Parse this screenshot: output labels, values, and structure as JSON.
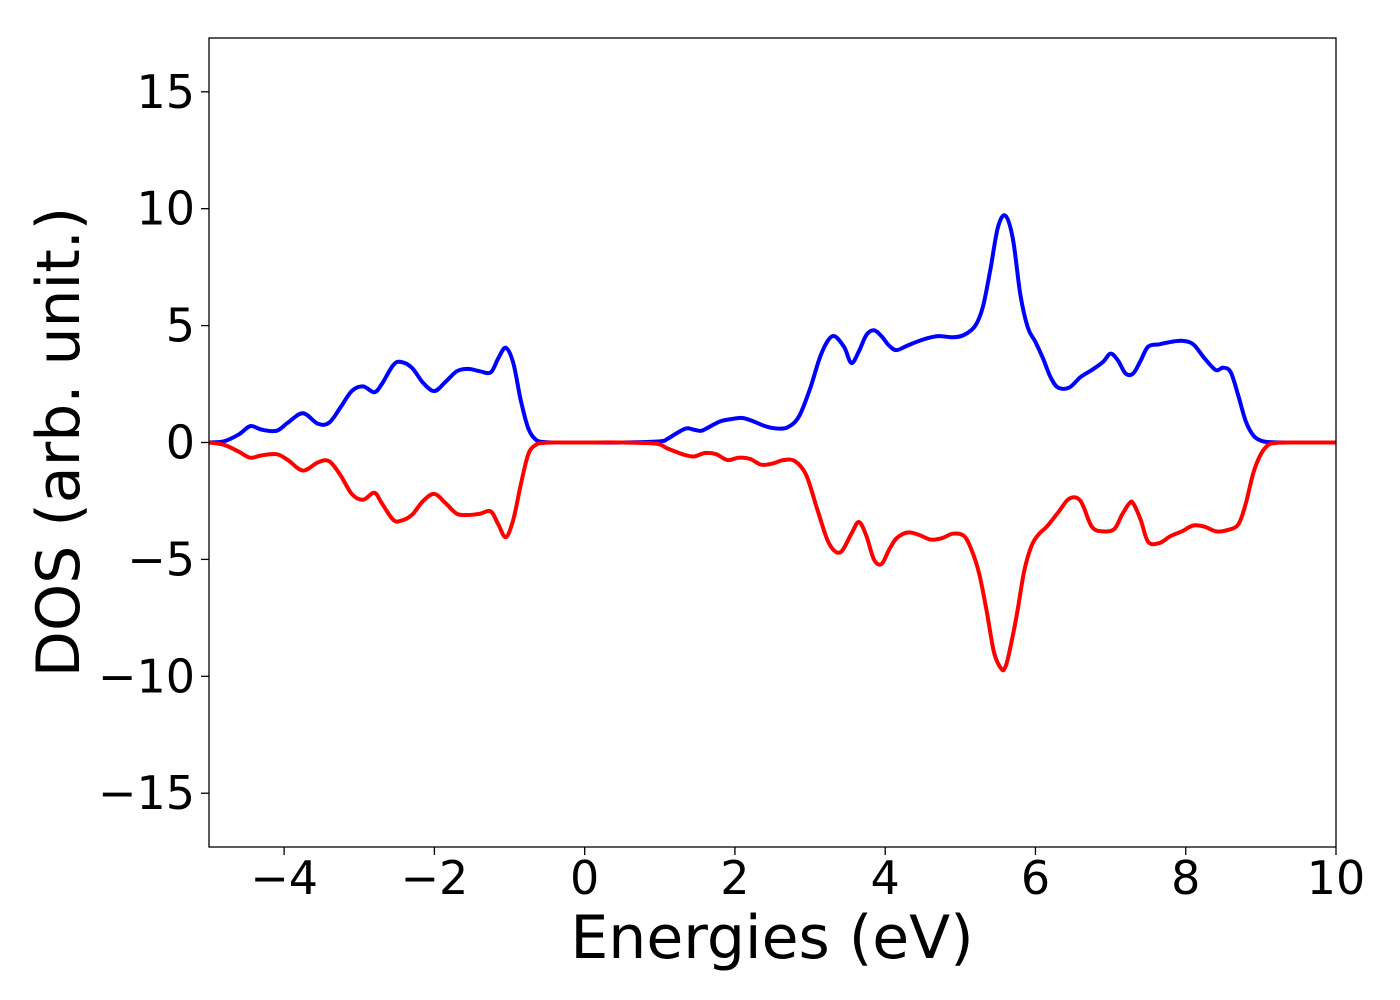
{
  "chart_data": {
    "type": "line",
    "title": "",
    "xlabel": "Energies (eV)",
    "ylabel": "DOS (arb. unit.)",
    "xlim": [
      -5,
      10
    ],
    "ylim": [
      -17.3,
      17.3
    ],
    "xticks": [
      -4,
      -2,
      0,
      2,
      4,
      6,
      8,
      10
    ],
    "xtick_labels": [
      "−4",
      "−2",
      "0",
      "2",
      "4",
      "6",
      "8",
      "10"
    ],
    "yticks": [
      15,
      10,
      5,
      0,
      -5,
      -10,
      -15
    ],
    "ytick_labels": [
      "15",
      "10",
      "5",
      "0",
      "−5",
      "−10",
      "−15"
    ],
    "grid": false,
    "legend": false,
    "series": [
      {
        "color": "#0000ff",
        "x": [
          -5,
          -4.8,
          -4.6,
          -4.45,
          -4.3,
          -4.1,
          -3.95,
          -3.75,
          -3.55,
          -3.4,
          -3.25,
          -3.1,
          -2.95,
          -2.8,
          -2.7,
          -2.55,
          -2.45,
          -2.3,
          -2.15,
          -2.0,
          -1.85,
          -1.7,
          -1.55,
          -1.4,
          -1.25,
          -1.15,
          -1.05,
          -0.95,
          -0.85,
          -0.75,
          -0.65,
          -0.55,
          -0.4,
          0,
          0.5,
          1.0,
          1.1,
          1.2,
          1.35,
          1.45,
          1.55,
          1.65,
          1.8,
          1.95,
          2.1,
          2.25,
          2.4,
          2.55,
          2.7,
          2.85,
          3.0,
          3.15,
          3.3,
          3.45,
          3.55,
          3.65,
          3.75,
          3.85,
          3.95,
          4.05,
          4.15,
          4.3,
          4.5,
          4.7,
          4.9,
          5.05,
          5.2,
          5.3,
          5.4,
          5.5,
          5.6,
          5.7,
          5.8,
          5.9,
          6.0,
          6.1,
          6.2,
          6.3,
          6.45,
          6.6,
          6.75,
          6.9,
          7.0,
          7.1,
          7.2,
          7.3,
          7.4,
          7.5,
          7.65,
          7.8,
          7.95,
          8.1,
          8.25,
          8.4,
          8.5,
          8.6,
          8.7,
          8.8,
          8.9,
          9.0,
          9.1,
          9.3,
          9.6,
          10
        ],
        "y": [
          0,
          0.05,
          0.35,
          0.7,
          0.55,
          0.5,
          0.85,
          1.25,
          0.8,
          0.85,
          1.5,
          2.2,
          2.4,
          2.15,
          2.5,
          3.3,
          3.45,
          3.2,
          2.55,
          2.2,
          2.6,
          3.05,
          3.15,
          3.05,
          3.0,
          3.6,
          4.05,
          3.4,
          1.8,
          0.6,
          0.12,
          0.02,
          0,
          0,
          0,
          0.05,
          0.15,
          0.35,
          0.6,
          0.55,
          0.5,
          0.65,
          0.9,
          1.0,
          1.05,
          0.9,
          0.7,
          0.6,
          0.65,
          1.1,
          2.3,
          3.8,
          4.55,
          4.1,
          3.4,
          3.9,
          4.6,
          4.8,
          4.55,
          4.15,
          3.95,
          4.15,
          4.4,
          4.55,
          4.5,
          4.6,
          5.0,
          5.8,
          7.4,
          9.2,
          9.7,
          8.7,
          6.3,
          4.9,
          4.3,
          3.6,
          2.8,
          2.35,
          2.35,
          2.8,
          3.1,
          3.45,
          3.8,
          3.5,
          2.95,
          2.95,
          3.5,
          4.1,
          4.2,
          4.3,
          4.35,
          4.2,
          3.6,
          3.1,
          3.2,
          3.0,
          2.0,
          0.9,
          0.3,
          0.08,
          0.02,
          0,
          0,
          0
        ]
      },
      {
        "color": "#ff0000",
        "x": [
          -5,
          -4.8,
          -4.6,
          -4.45,
          -4.3,
          -4.1,
          -3.95,
          -3.75,
          -3.55,
          -3.4,
          -3.25,
          -3.1,
          -2.95,
          -2.8,
          -2.7,
          -2.55,
          -2.45,
          -2.3,
          -2.15,
          -2.0,
          -1.85,
          -1.7,
          -1.55,
          -1.4,
          -1.25,
          -1.15,
          -1.05,
          -0.95,
          -0.85,
          -0.75,
          -0.65,
          -0.55,
          -0.4,
          0,
          0.5,
          0.95,
          1.1,
          1.3,
          1.45,
          1.6,
          1.75,
          1.9,
          2.05,
          2.2,
          2.35,
          2.5,
          2.65,
          2.8,
          2.95,
          3.1,
          3.25,
          3.4,
          3.55,
          3.65,
          3.75,
          3.85,
          3.95,
          4.05,
          4.15,
          4.3,
          4.45,
          4.6,
          4.75,
          4.9,
          5.05,
          5.15,
          5.25,
          5.35,
          5.45,
          5.55,
          5.6,
          5.65,
          5.75,
          5.85,
          5.95,
          6.05,
          6.15,
          6.3,
          6.45,
          6.6,
          6.75,
          6.9,
          7.05,
          7.15,
          7.25,
          7.3,
          7.4,
          7.5,
          7.65,
          7.8,
          7.95,
          8.1,
          8.25,
          8.4,
          8.55,
          8.7,
          8.8,
          8.9,
          9.0,
          9.1,
          9.2,
          9.4,
          9.7,
          10
        ],
        "y": [
          0,
          -0.1,
          -0.4,
          -0.65,
          -0.55,
          -0.5,
          -0.75,
          -1.2,
          -0.85,
          -0.8,
          -1.4,
          -2.2,
          -2.45,
          -2.15,
          -2.6,
          -3.3,
          -3.35,
          -3.1,
          -2.5,
          -2.2,
          -2.6,
          -3.05,
          -3.1,
          -3.05,
          -2.95,
          -3.5,
          -4.05,
          -3.3,
          -1.8,
          -0.5,
          -0.1,
          -0.02,
          0,
          0,
          0,
          -0.05,
          -0.25,
          -0.5,
          -0.6,
          -0.45,
          -0.5,
          -0.75,
          -0.65,
          -0.7,
          -0.95,
          -0.9,
          -0.75,
          -0.8,
          -1.4,
          -2.9,
          -4.3,
          -4.7,
          -3.9,
          -3.4,
          -4.0,
          -5.0,
          -5.2,
          -4.6,
          -4.1,
          -3.85,
          -3.95,
          -4.15,
          -4.1,
          -3.9,
          -4.0,
          -4.6,
          -5.6,
          -7.2,
          -9.0,
          -9.7,
          -9.6,
          -9.0,
          -7.4,
          -5.5,
          -4.4,
          -3.9,
          -3.6,
          -3.0,
          -2.4,
          -2.5,
          -3.6,
          -3.8,
          -3.7,
          -3.1,
          -2.6,
          -2.6,
          -3.3,
          -4.25,
          -4.3,
          -4.0,
          -3.8,
          -3.55,
          -3.6,
          -3.8,
          -3.75,
          -3.5,
          -2.6,
          -1.3,
          -0.5,
          -0.1,
          -0.02,
          0,
          0,
          0
        ]
      }
    ]
  }
}
